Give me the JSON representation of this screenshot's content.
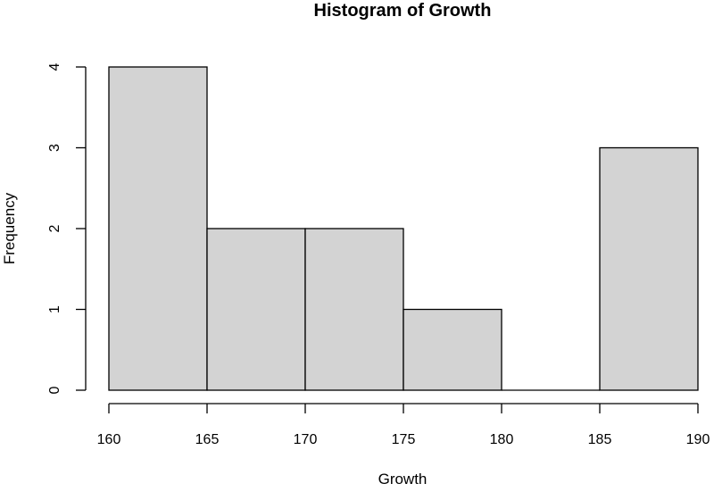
{
  "chart_data": {
    "type": "bar",
    "histogram": true,
    "title": "Histogram of Growth",
    "xlabel": "Growth",
    "ylabel": "Frequency",
    "bins": [
      {
        "from": 160,
        "to": 165,
        "count": 4
      },
      {
        "from": 165,
        "to": 170,
        "count": 2
      },
      {
        "from": 170,
        "to": 175,
        "count": 2
      },
      {
        "from": 175,
        "to": 180,
        "count": 1
      },
      {
        "from": 180,
        "to": 185,
        "count": 0
      },
      {
        "from": 185,
        "to": 190,
        "count": 3
      }
    ],
    "xlim": [
      160,
      190
    ],
    "ylim": [
      0,
      4
    ],
    "xticks": [
      160,
      165,
      170,
      175,
      180,
      185,
      190
    ],
    "yticks": [
      0,
      1,
      2,
      3,
      4
    ],
    "bar_fill": "#d3d3d3",
    "bar_stroke": "#000000",
    "grid": false,
    "legend": "none"
  }
}
